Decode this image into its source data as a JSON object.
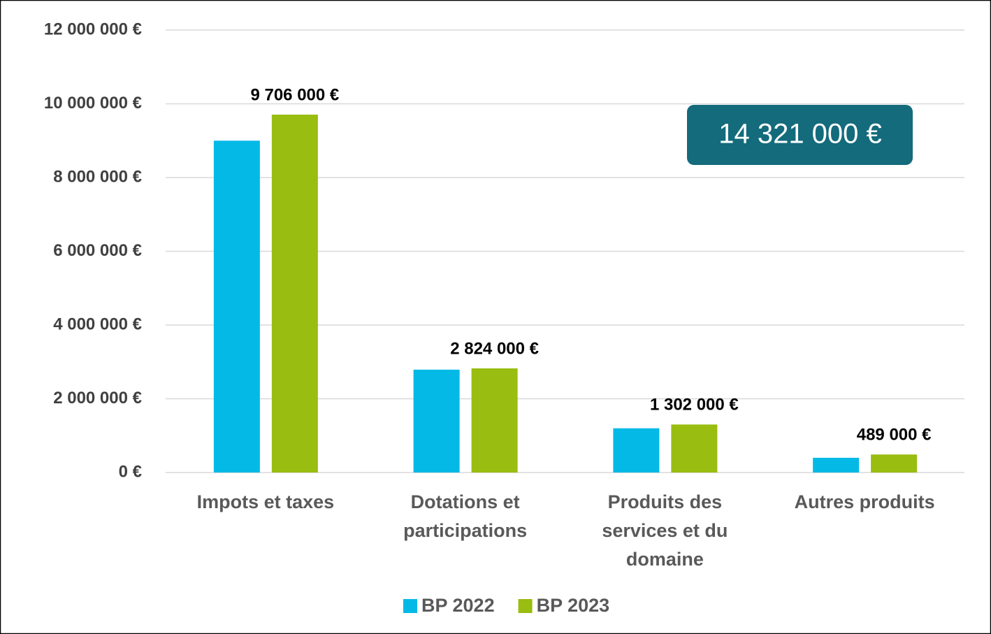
{
  "chart_data": {
    "type": "bar",
    "categories": [
      "Impots et taxes",
      "Dotations et participations",
      "Produits des services et du domaine",
      "Autres produits"
    ],
    "series": [
      {
        "name": "BP 2022",
        "color": "#05b9e6",
        "values": [
          9000000,
          2790000,
          1200000,
          400000
        ]
      },
      {
        "name": "BP 2023",
        "color": "#99bd10",
        "values": [
          9706000,
          2824000,
          1302000,
          489000
        ],
        "value_labels": [
          "9 706 000 €",
          "2 824 000 €",
          "1 302 000 €",
          "489 000 €"
        ]
      }
    ],
    "annotation": "14 321 000 €",
    "ylim": [
      0,
      12000000
    ],
    "yticks": [
      {
        "value": 0,
        "label": "0 €"
      },
      {
        "value": 2000000,
        "label": "2 000 000 €"
      },
      {
        "value": 4000000,
        "label": "4 000 000 €"
      },
      {
        "value": 6000000,
        "label": "6 000 000 €"
      },
      {
        "value": 8000000,
        "label": "8 000 000 €"
      },
      {
        "value": 10000000,
        "label": "10 000 000 €"
      },
      {
        "value": 12000000,
        "label": "12 000 000 €"
      }
    ],
    "grid": true,
    "legend": "bottom"
  }
}
